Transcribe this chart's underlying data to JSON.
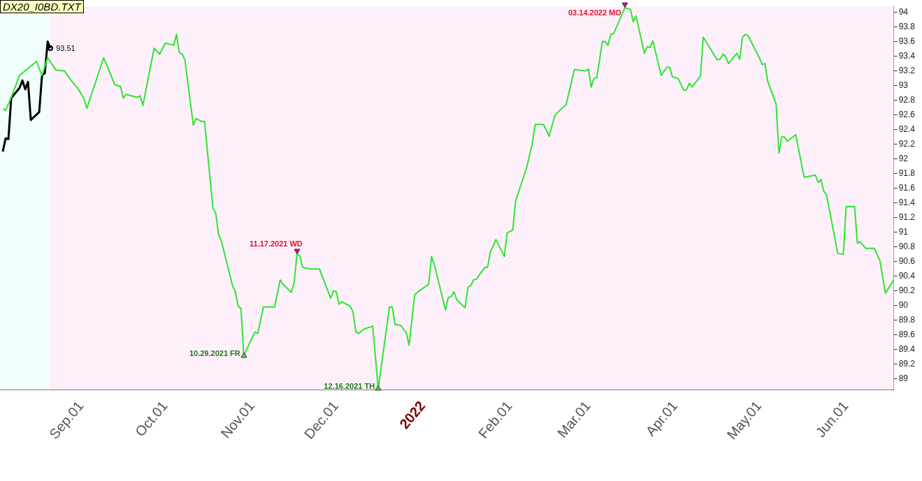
{
  "chart_data": {
    "type": "line",
    "title": "DX20_I0BD.TXT",
    "xlim": [
      "2021-08-03",
      "2022-06-18"
    ],
    "xticks": [
      {
        "value": "2021-09-01",
        "label": "Sep.01"
      },
      {
        "value": "2021-10-01",
        "label": "Oct.01"
      },
      {
        "value": "2021-11-01",
        "label": "Nov.01"
      },
      {
        "value": "2021-12-01",
        "label": "Dec.01"
      },
      {
        "value": "2022-01-01",
        "label": "2022"
      },
      {
        "value": "2022-02-01",
        "label": "Feb.01"
      },
      {
        "value": "2022-03-01",
        "label": "Mar.01"
      },
      {
        "value": "2022-04-01",
        "label": "Apr.01"
      },
      {
        "value": "2022-05-01",
        "label": "May.01"
      },
      {
        "value": "2022-06-01",
        "label": "Jun.01"
      }
    ],
    "ylim": [
      88.85,
      94.08
    ],
    "yticks": [
      89,
      89.2,
      89.4,
      89.6,
      89.8,
      90,
      90.2,
      90.4,
      90.6,
      90.8,
      91,
      91.2,
      91.4,
      91.6,
      91.8,
      92,
      92.2,
      92.4,
      92.6,
      92.8,
      93,
      93.2,
      93.4,
      93.6,
      93.8,
      94
    ],
    "grid": false,
    "legend": false,
    "marker": "none",
    "line_style": "solid",
    "bands": [
      {
        "axis": "x",
        "from": "2021-08-03",
        "to": "2021-08-21",
        "color": "#f2fdfd"
      },
      {
        "axis": "x",
        "from": "2021-08-21",
        "to": "2022-06-18",
        "color": "#fdf0fb"
      }
    ],
    "series": [
      {
        "color": "#2ee62e",
        "x": [
          "2021-08-04",
          "2021-08-05",
          "2021-08-07",
          "2021-08-10",
          "2021-08-16",
          "2021-08-18",
          "2021-08-20",
          "2021-08-23",
          "2021-08-26",
          "2021-08-28",
          "2021-08-31",
          "2021-09-02",
          "2021-09-03",
          "2021-09-09",
          "2021-09-13",
          "2021-09-15",
          "2021-09-16",
          "2021-09-17",
          "2021-09-21",
          "2021-09-22",
          "2021-09-23",
          "2021-09-27",
          "2021-09-29",
          "2021-10-01",
          "2021-10-04",
          "2021-10-05",
          "2021-10-06",
          "2021-10-07",
          "2021-10-08",
          "2021-10-11",
          "2021-10-12",
          "2021-10-14",
          "2021-10-15",
          "2021-10-18",
          "2021-10-19",
          "2021-10-20",
          "2021-10-21",
          "2021-10-25",
          "2021-10-26",
          "2021-10-27",
          "2021-10-28",
          "2021-10-29",
          "2021-11-02",
          "2021-11-03",
          "2021-11-05",
          "2021-11-09",
          "2021-11-11",
          "2021-11-12",
          "2021-11-15",
          "2021-11-16",
          "2021-11-17",
          "2021-11-18",
          "2021-11-19",
          "2021-11-22",
          "2021-11-25",
          "2021-11-29",
          "2021-11-30",
          "2021-12-01",
          "2021-12-02",
          "2021-12-03",
          "2021-12-06",
          "2021-12-07",
          "2021-12-08",
          "2021-12-09",
          "2021-12-11",
          "2021-12-14",
          "2021-12-16",
          "2021-12-20",
          "2021-12-21",
          "2021-12-22",
          "2021-12-24",
          "2021-12-26",
          "2021-12-27",
          "2021-12-29",
          "2021-12-31",
          "2022-01-03",
          "2022-01-04",
          "2022-01-05",
          "2022-01-09",
          "2022-01-10",
          "2022-01-11",
          "2022-01-12",
          "2022-01-13",
          "2022-01-16",
          "2022-01-17",
          "2022-01-18",
          "2022-01-19",
          "2022-01-20",
          "2022-01-23",
          "2022-01-24",
          "2022-01-25",
          "2022-01-27",
          "2022-01-30",
          "2022-01-31",
          "2022-02-02",
          "2022-02-03",
          "2022-02-07",
          "2022-02-09",
          "2022-02-10",
          "2022-02-13",
          "2022-02-15",
          "2022-02-17",
          "2022-02-20",
          "2022-02-21",
          "2022-02-24",
          "2022-02-28",
          "2022-03-01",
          "2022-03-02",
          "2022-03-03",
          "2022-03-04",
          "2022-03-06",
          "2022-03-07",
          "2022-03-08",
          "2022-03-09",
          "2022-03-10",
          "2022-03-14",
          "2022-03-15",
          "2022-03-16",
          "2022-03-17",
          "2022-03-18",
          "2022-03-21",
          "2022-03-22",
          "2022-03-23",
          "2022-03-24",
          "2022-03-27",
          "2022-03-29",
          "2022-03-30",
          "2022-03-31",
          "2022-04-02",
          "2022-04-04",
          "2022-04-05",
          "2022-04-06",
          "2022-04-07",
          "2022-04-10",
          "2022-04-11",
          "2022-04-16",
          "2022-04-17",
          "2022-04-18",
          "2022-04-19",
          "2022-04-20",
          "2022-04-23",
          "2022-04-24",
          "2022-04-25",
          "2022-04-26",
          "2022-04-27",
          "2022-05-01",
          "2022-05-02",
          "2022-05-03",
          "2022-05-04",
          "2022-05-07",
          "2022-05-08",
          "2022-05-09",
          "2022-05-10",
          "2022-05-11",
          "2022-05-14",
          "2022-05-17",
          "2022-05-21",
          "2022-05-22",
          "2022-05-23",
          "2022-05-24",
          "2022-05-25",
          "2022-05-29",
          "2022-05-31",
          "2022-06-01",
          "2022-06-04",
          "2022-06-05",
          "2022-06-06",
          "2022-06-08",
          "2022-06-11",
          "2022-06-13",
          "2022-06-15",
          "2022-06-18"
        ],
        "values": [
          92.69,
          92.66,
          92.84,
          93.14,
          93.33,
          93.14,
          93.38,
          93.21,
          93.2,
          93.09,
          92.95,
          92.82,
          92.69,
          93.38,
          93.01,
          92.99,
          92.83,
          92.88,
          92.84,
          92.86,
          92.73,
          93.51,
          93.43,
          93.58,
          93.55,
          93.7,
          93.45,
          93.43,
          93.35,
          92.46,
          92.55,
          92.51,
          92.51,
          91.33,
          91.26,
          90.97,
          90.88,
          90.27,
          90.19,
          89.99,
          89.96,
          89.32,
          89.64,
          89.62,
          89.98,
          89.98,
          90.35,
          90.29,
          90.18,
          90.32,
          90.7,
          90.68,
          90.52,
          90.5,
          90.5,
          90.1,
          90.2,
          90.19,
          90.02,
          90.05,
          89.99,
          89.91,
          89.64,
          89.62,
          89.68,
          89.72,
          88.87,
          89.98,
          89.98,
          89.74,
          89.73,
          89.63,
          89.46,
          90.15,
          90.21,
          90.29,
          90.67,
          90.56,
          89.94,
          90.11,
          90.12,
          90.19,
          90.08,
          89.97,
          90.25,
          90.27,
          90.35,
          90.36,
          90.52,
          90.52,
          90.73,
          90.9,
          90.67,
          90.99,
          91.03,
          91.42,
          91.89,
          92.21,
          92.47,
          92.47,
          92.31,
          92.59,
          92.71,
          92.73,
          93.22,
          93.2,
          93.23,
          92.98,
          93.1,
          93.11,
          93.6,
          93.6,
          93.55,
          93.7,
          93.71,
          94.06,
          94.05,
          94.04,
          93.87,
          93.95,
          93.44,
          93.53,
          93.52,
          93.61,
          93.14,
          93.25,
          93.25,
          93.12,
          93.1,
          92.94,
          92.94,
          93.03,
          92.98,
          93.13,
          93.66,
          93.35,
          93.36,
          93.43,
          93.4,
          93.3,
          93.44,
          93.36,
          93.66,
          93.7,
          93.68,
          93.38,
          93.29,
          93.3,
          93.06,
          92.75,
          92.08,
          92.3,
          92.3,
          92.24,
          92.33,
          91.75,
          91.78,
          91.68,
          91.72,
          91.56,
          91.51,
          90.71,
          90.7,
          91.35,
          91.35,
          90.85,
          90.87,
          90.78,
          90.78,
          90.62,
          90.17,
          90.35
        ]
      },
      {
        "color": "#000000",
        "x": [
          "2021-08-04",
          "2021-08-05",
          "2021-08-06",
          "2021-08-07",
          "2021-08-10",
          "2021-08-11",
          "2021-08-12",
          "2021-08-13",
          "2021-08-14",
          "2021-08-17",
          "2021-08-18",
          "2021-08-19",
          "2021-08-20",
          "2021-08-21"
        ],
        "values": [
          92.1,
          92.28,
          92.27,
          92.83,
          92.97,
          93.07,
          92.95,
          93.05,
          92.53,
          92.64,
          93.14,
          93.17,
          93.6,
          93.51
        ]
      }
    ],
    "annotations": [
      {
        "text": "93.51",
        "x": "2021-08-21",
        "y": 93.51
      },
      {
        "text": "10.29.2021 FR",
        "x": "2021-10-29",
        "y": 89.32
      },
      {
        "text": "11.17.2021 WD",
        "x": "2021-11-17",
        "y": 90.7
      },
      {
        "text": "12.16.2021 TH",
        "x": "2021-12-16",
        "y": 88.87
      },
      {
        "text": "03.14.2022 MO",
        "x": "2022-03-14",
        "y": 94.06
      }
    ]
  }
}
